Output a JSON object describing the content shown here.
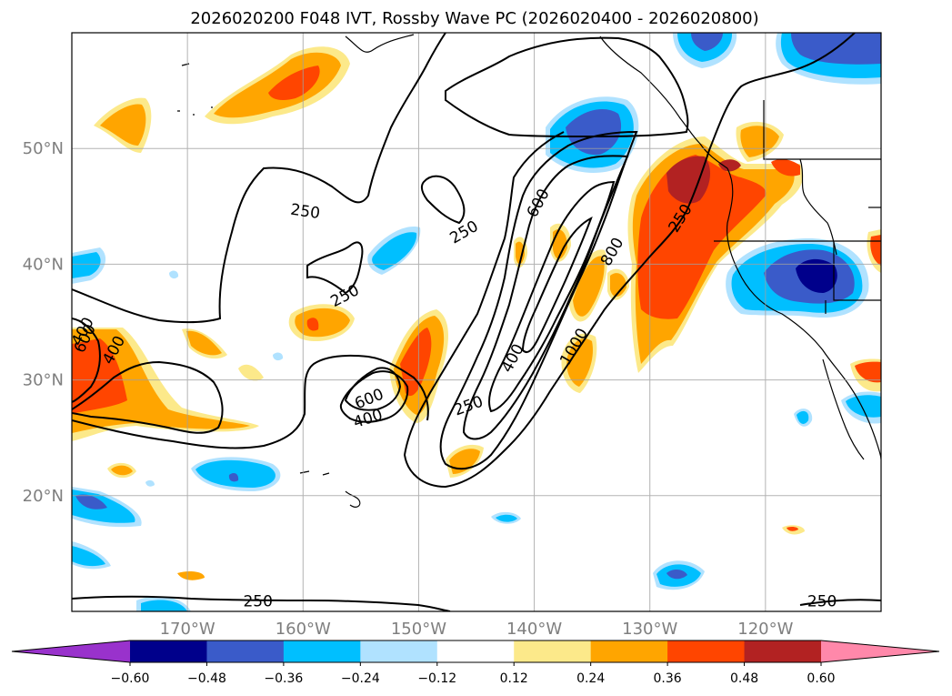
{
  "title": "2026020200 F048 IVT, Rossby Wave PC (2026020400 - 2026020800)",
  "map": {
    "lon_range": [
      -180,
      -110
    ],
    "lat_range": [
      10,
      60
    ],
    "lat_labels": [
      {
        "lat": 20,
        "text": "20°N"
      },
      {
        "lat": 30,
        "text": "30°N"
      },
      {
        "lat": 40,
        "text": "40°N"
      },
      {
        "lat": 50,
        "text": "50°N"
      }
    ],
    "lon_labels": [
      {
        "lon": -170,
        "text": "170°W"
      },
      {
        "lon": -160,
        "text": "160°W"
      },
      {
        "lon": -150,
        "text": "150°W"
      },
      {
        "lon": -140,
        "text": "140°W"
      },
      {
        "lon": -130,
        "text": "130°W"
      },
      {
        "lon": -120,
        "text": "120°W"
      }
    ],
    "grid_lines": true,
    "contour_labels": [
      {
        "text": "250",
        "lon": -159.8,
        "lat": 44.6,
        "angle": 8
      },
      {
        "text": "250",
        "lon": -146.1,
        "lat": 42.8,
        "angle": -30
      },
      {
        "text": "250",
        "lon": -156.4,
        "lat": 37.3,
        "angle": -28
      },
      {
        "text": "250",
        "lon": -145.7,
        "lat": 27.8,
        "angle": -20
      },
      {
        "text": "250",
        "lon": -127.4,
        "lat": 44.0,
        "angle": -58
      },
      {
        "text": "250",
        "lon": -163.9,
        "lat": 10.9,
        "angle": 0
      },
      {
        "text": "250",
        "lon": -115.1,
        "lat": 10.9,
        "angle": 0
      },
      {
        "text": "400",
        "lon": -176.4,
        "lat": 32.6,
        "angle": -62
      },
      {
        "text": "400",
        "lon": -179.1,
        "lat": 34.2,
        "angle": -62
      },
      {
        "text": "400",
        "lon": -154.4,
        "lat": 26.7,
        "angle": -18
      },
      {
        "text": "400",
        "lon": -141.9,
        "lat": 31.9,
        "angle": -62
      },
      {
        "text": "600",
        "lon": -178.9,
        "lat": 33.6,
        "angle": -65
      },
      {
        "text": "600",
        "lon": -154.3,
        "lat": 28.4,
        "angle": -22
      },
      {
        "text": "600",
        "lon": -139.7,
        "lat": 45.3,
        "angle": -62
      },
      {
        "text": "800",
        "lon": -133.3,
        "lat": 41.1,
        "angle": -60
      },
      {
        "text": "1000",
        "lon": -136.6,
        "lat": 32.9,
        "angle": -60
      }
    ]
  },
  "colorbar": {
    "ticks": [
      "−0.60",
      "−0.48",
      "−0.36",
      "−0.24",
      "−0.12",
      "0.12",
      "0.24",
      "0.36",
      "0.48",
      "0.60"
    ],
    "colors": [
      "#9932cc",
      "#00008b",
      "#3a5bc9",
      "#00bfff",
      "#b0e2ff",
      "#ffffff",
      "#fce98a",
      "#ffa500",
      "#ff4500",
      "#b22222",
      "#ff88aa"
    ]
  },
  "legend_colors": {
    "neg_strong": "#3a5bc9",
    "neg_mid": "#00bfff",
    "neg_weak": "#b0e2ff",
    "neg_extreme": "#00008b",
    "pos_weak": "#fce98a",
    "pos_mid": "#ffa500",
    "pos_strong": "#ff4500",
    "pos_extreme": "#b22222"
  }
}
